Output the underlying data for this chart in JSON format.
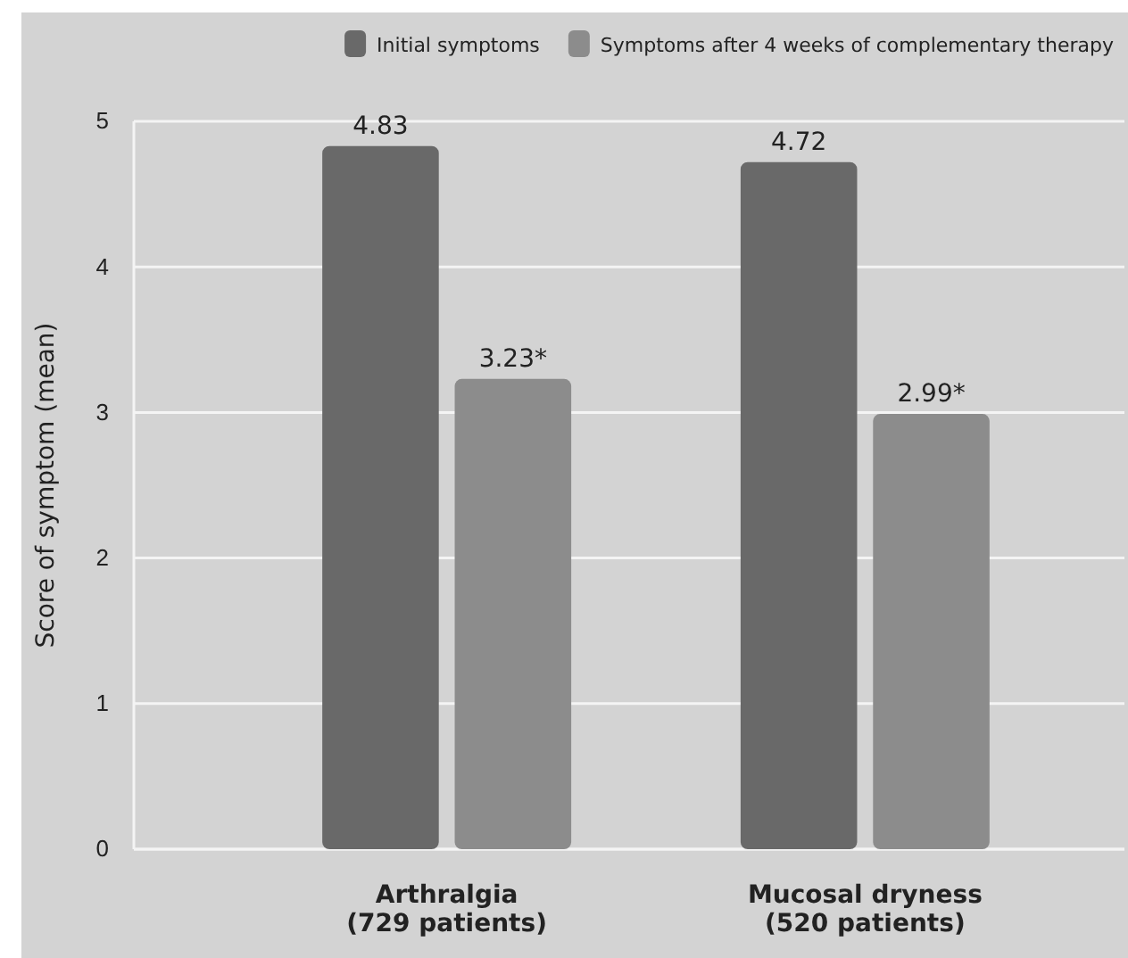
{
  "chart_data": {
    "type": "bar",
    "ylabel": "Score of symptom (mean)",
    "categories": [
      "Arthralgia\n(729 patients)",
      "Mucosal dryness\n(520 patients)"
    ],
    "series": [
      {
        "name": "Initial symptoms",
        "color": "#696969",
        "values": [
          4.83,
          4.72
        ],
        "value_labels": [
          "4.83",
          "4.72"
        ]
      },
      {
        "name": "Symptoms after 4 weeks of complementary therapy",
        "color": "#8c8c8c",
        "values": [
          3.23,
          2.99
        ],
        "value_labels": [
          "3.23*",
          "2.99*"
        ]
      }
    ],
    "ylim": [
      0,
      5
    ],
    "yticks": [
      0,
      1,
      2,
      3,
      4,
      5
    ],
    "grid": "y",
    "legend": "top right"
  }
}
